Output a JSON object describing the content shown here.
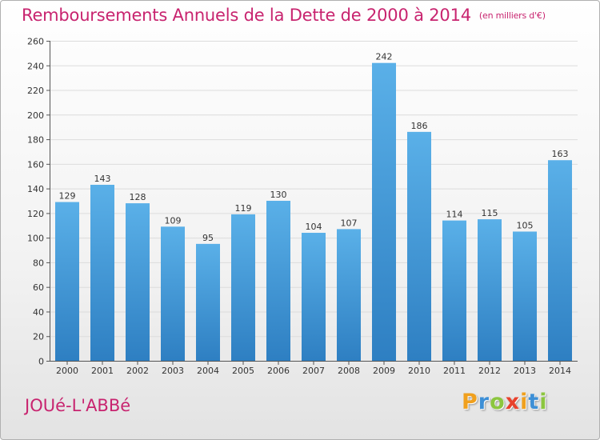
{
  "chart_data": {
    "type": "bar",
    "title": "Remboursements Annuels de la Dette de 2000 à 2014",
    "unit": "(en milliers d'€)",
    "categories": [
      "2000",
      "2001",
      "2002",
      "2003",
      "2004",
      "2005",
      "2006",
      "2007",
      "2008",
      "2009",
      "2010",
      "2011",
      "2012",
      "2013",
      "2014"
    ],
    "values": [
      129,
      143,
      128,
      109,
      95,
      119,
      130,
      104,
      107,
      242,
      186,
      114,
      115,
      105,
      163
    ],
    "ylim": [
      0,
      260
    ],
    "yticks": [
      0,
      20,
      40,
      60,
      80,
      100,
      120,
      140,
      160,
      180,
      200,
      220,
      240,
      260
    ],
    "xlabel": "",
    "ylabel": "",
    "grid": true,
    "colors": {
      "bar_top": "#5ab0e8",
      "bar_bottom": "#2e7fc2",
      "grid": "#dcdcdc",
      "title": "#c8246f"
    }
  },
  "footer": {
    "town": "JOUé-L'ABBé",
    "logo_letters": [
      "P",
      "r",
      "o",
      "x",
      "i",
      "t",
      "i"
    ],
    "logo_colors": [
      "#f0a01e",
      "#3d8fd6",
      "#8cc63f",
      "#e8412c",
      "#f0a01e",
      "#3d8fd6",
      "#8cc63f"
    ]
  }
}
